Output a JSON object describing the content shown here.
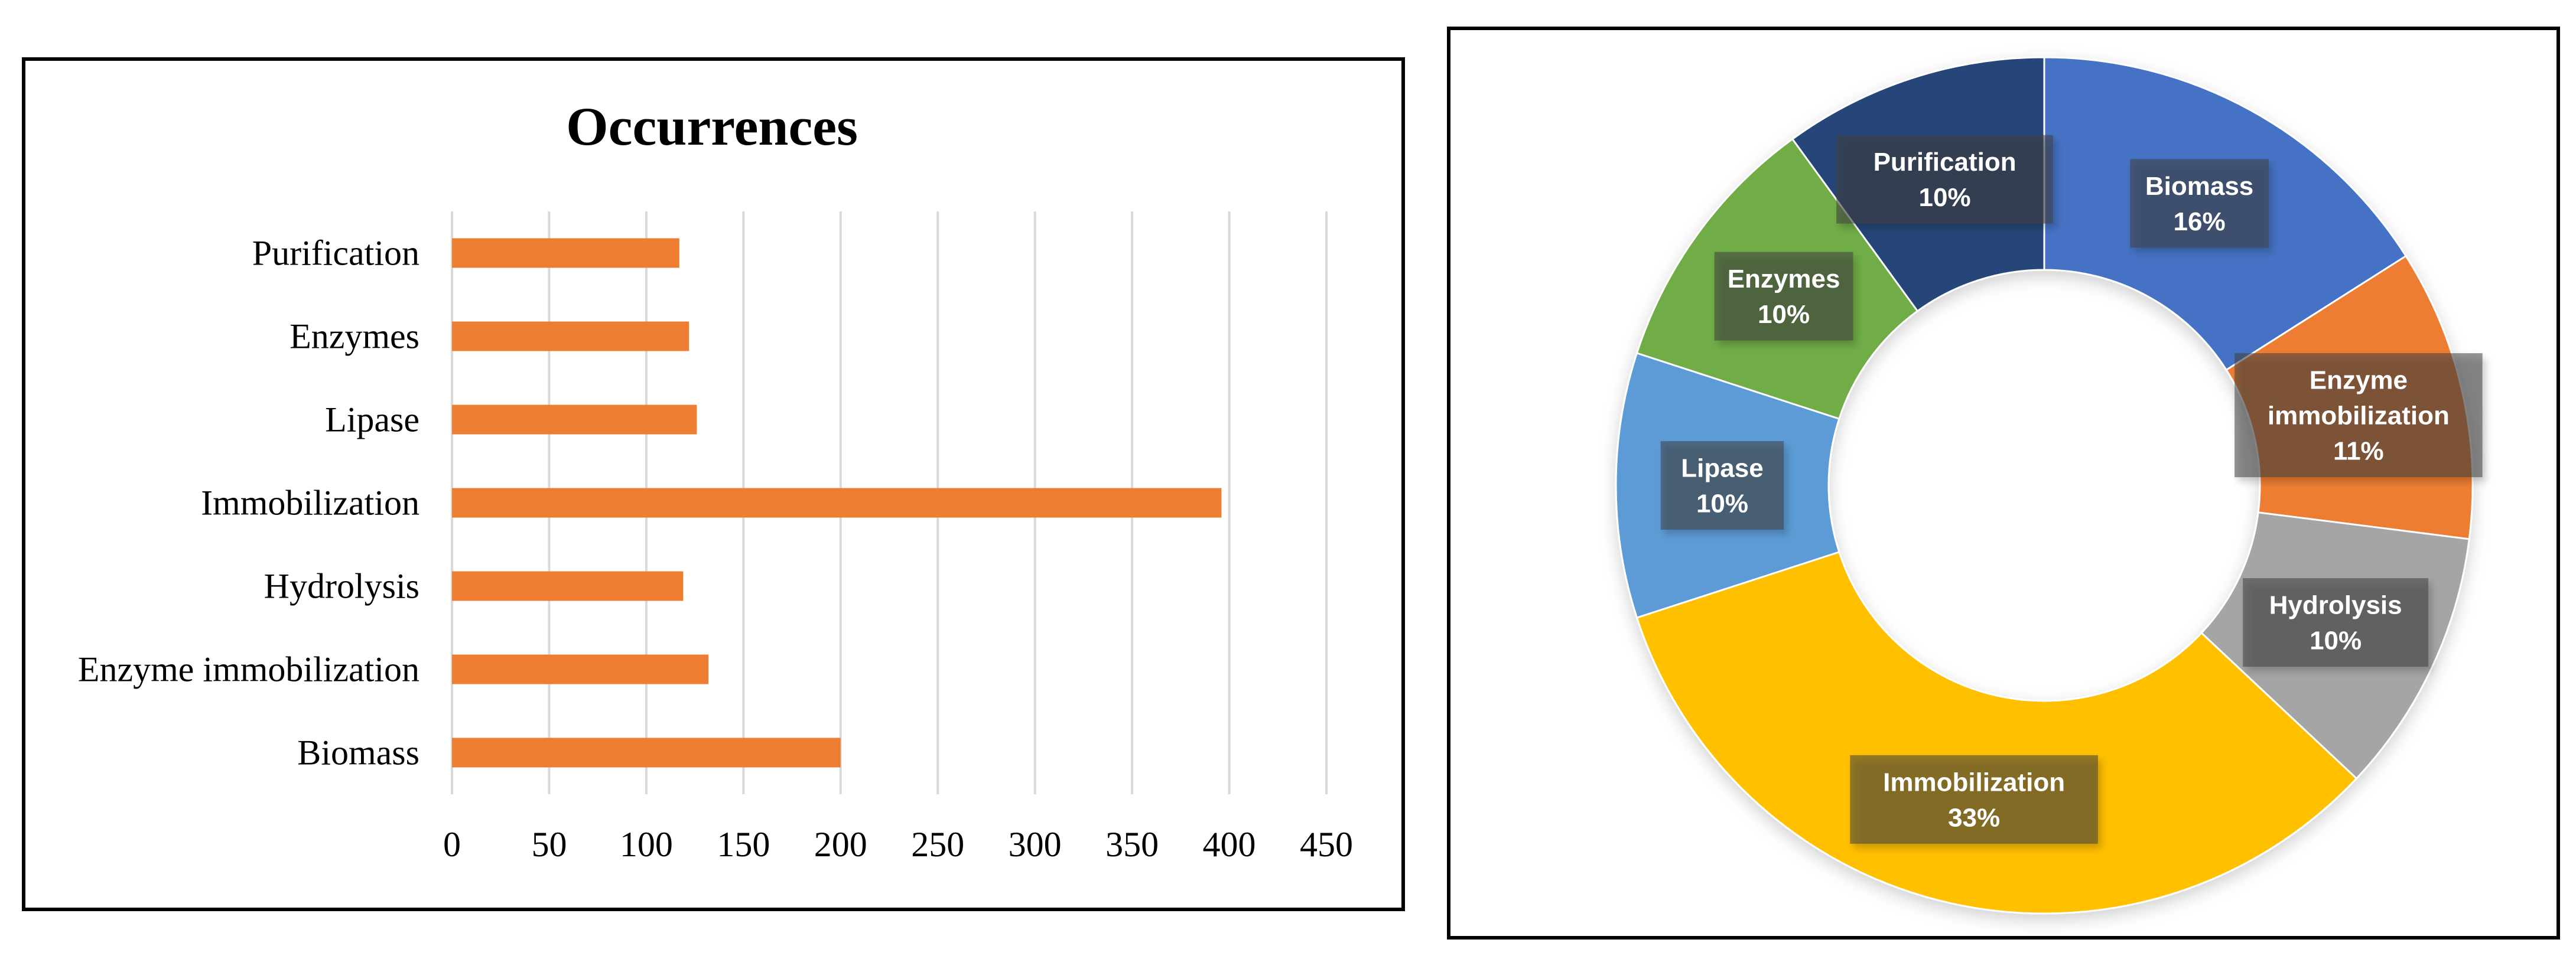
{
  "chart_data": [
    {
      "type": "bar",
      "orientation": "horizontal",
      "title": "Occurrences",
      "categories": [
        "Purification",
        "Enzymes",
        "Lipase",
        "Immobilization",
        "Hydrolysis",
        "Enzyme immobilization",
        "Biomass"
      ],
      "values": [
        117,
        122,
        126,
        396,
        119,
        132,
        200
      ],
      "xlim": [
        0,
        450
      ],
      "xticks": [
        "0",
        "50",
        "100",
        "150",
        "200",
        "250",
        "300",
        "350",
        "400",
        "450"
      ],
      "grid": true,
      "bar_color": "#ED7D31"
    },
    {
      "type": "pie",
      "variant": "donut",
      "slices": [
        {
          "label": "Biomass",
          "percent_label": "16%",
          "value": 16,
          "color": "#4472C4"
        },
        {
          "label": "Enzyme immobilization",
          "percent_label": "11%",
          "value": 11,
          "color": "#ED7D31"
        },
        {
          "label": "Hydrolysis",
          "percent_label": "10%",
          "value": 10,
          "color": "#A5A5A5"
        },
        {
          "label": "Immobilization",
          "percent_label": "33%",
          "value": 33,
          "color": "#FFC000"
        },
        {
          "label": "Lipase",
          "percent_label": "10%",
          "value": 10,
          "color": "#5B9BD5"
        },
        {
          "label": "Enzymes",
          "percent_label": "10%",
          "value": 10,
          "color": "#70AD47"
        },
        {
          "label": "Purification",
          "percent_label": "10%",
          "value": 10,
          "color": "#264478"
        }
      ]
    }
  ]
}
